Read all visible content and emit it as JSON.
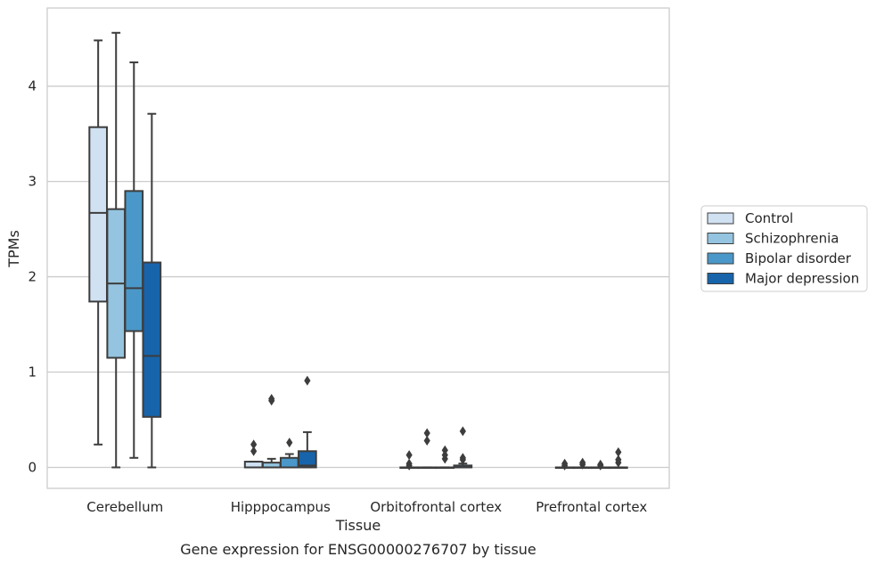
{
  "caption": "Gene expression for ENSG00000276707 by tissue",
  "chart_data": {
    "type": "box",
    "xlabel": "Tissue",
    "ylabel": "TPMs",
    "ylim": [
      -0.22,
      4.82
    ],
    "yticks": [
      0,
      1,
      2,
      3,
      4
    ],
    "grid": "horizontal",
    "legend_position": "right",
    "categories": [
      "Cerebellum",
      "Hipppocampus",
      "Orbitofrontal cortex",
      "Prefrontal cortex"
    ],
    "series": [
      {
        "name": "Control",
        "color": "#d0e1f2",
        "boxes": [
          {
            "whislo": 0.24,
            "q1": 1.74,
            "med": 2.67,
            "q3": 3.57,
            "whishi": 4.48,
            "fliers": []
          },
          {
            "whislo": 0.0,
            "q1": 0.0,
            "med": 0.0,
            "q3": 0.06,
            "whishi": 0.06,
            "fliers": [
              0.17,
              0.24
            ]
          },
          {
            "whislo": 0.0,
            "q1": 0.0,
            "med": 0.0,
            "q3": 0.0,
            "whishi": 0.0,
            "fliers": [
              0.02,
              0.04,
              0.13
            ]
          },
          {
            "whislo": 0.0,
            "q1": 0.0,
            "med": 0.0,
            "q3": 0.0,
            "whishi": 0.0,
            "fliers": [
              0.02,
              0.04
            ]
          }
        ]
      },
      {
        "name": "Schizophrenia",
        "color": "#94c4df",
        "boxes": [
          {
            "whislo": 0.0,
            "q1": 1.15,
            "med": 1.93,
            "q3": 2.71,
            "whishi": 4.56,
            "fliers": []
          },
          {
            "whislo": 0.0,
            "q1": 0.0,
            "med": 0.0,
            "q3": 0.05,
            "whishi": 0.09,
            "fliers": [
              0.7,
              0.72
            ]
          },
          {
            "whislo": 0.0,
            "q1": 0.0,
            "med": 0.0,
            "q3": 0.0,
            "whishi": 0.0,
            "fliers": [
              0.28,
              0.36
            ]
          },
          {
            "whislo": 0.0,
            "q1": 0.0,
            "med": 0.0,
            "q3": 0.0,
            "whishi": 0.0,
            "fliers": [
              0.03,
              0.05
            ]
          }
        ]
      },
      {
        "name": "Bipolar disorder",
        "color": "#4a98c9",
        "boxes": [
          {
            "whislo": 0.1,
            "q1": 1.43,
            "med": 1.88,
            "q3": 2.9,
            "whishi": 4.25,
            "fliers": []
          },
          {
            "whislo": 0.0,
            "q1": 0.0,
            "med": 0.0,
            "q3": 0.1,
            "whishi": 0.14,
            "fliers": [
              0.26
            ]
          },
          {
            "whislo": 0.0,
            "q1": 0.0,
            "med": 0.0,
            "q3": 0.0,
            "whishi": 0.0,
            "fliers": [
              0.09,
              0.13,
              0.18
            ]
          },
          {
            "whislo": 0.0,
            "q1": 0.0,
            "med": 0.0,
            "q3": 0.0,
            "whishi": 0.0,
            "fliers": [
              0.02,
              0.03
            ]
          }
        ]
      },
      {
        "name": "Major depression",
        "color": "#1764ab",
        "boxes": [
          {
            "whislo": 0.0,
            "q1": 0.53,
            "med": 1.17,
            "q3": 2.15,
            "whishi": 3.71,
            "fliers": []
          },
          {
            "whislo": 0.0,
            "q1": 0.0,
            "med": 0.02,
            "q3": 0.17,
            "whishi": 0.37,
            "fliers": [
              0.91
            ]
          },
          {
            "whislo": 0.0,
            "q1": 0.0,
            "med": 0.0,
            "q3": 0.02,
            "whishi": 0.04,
            "fliers": [
              0.08,
              0.1,
              0.38
            ]
          },
          {
            "whislo": 0.0,
            "q1": 0.0,
            "med": 0.0,
            "q3": 0.0,
            "whishi": 0.0,
            "fliers": [
              0.05,
              0.08,
              0.16
            ]
          }
        ]
      }
    ]
  }
}
